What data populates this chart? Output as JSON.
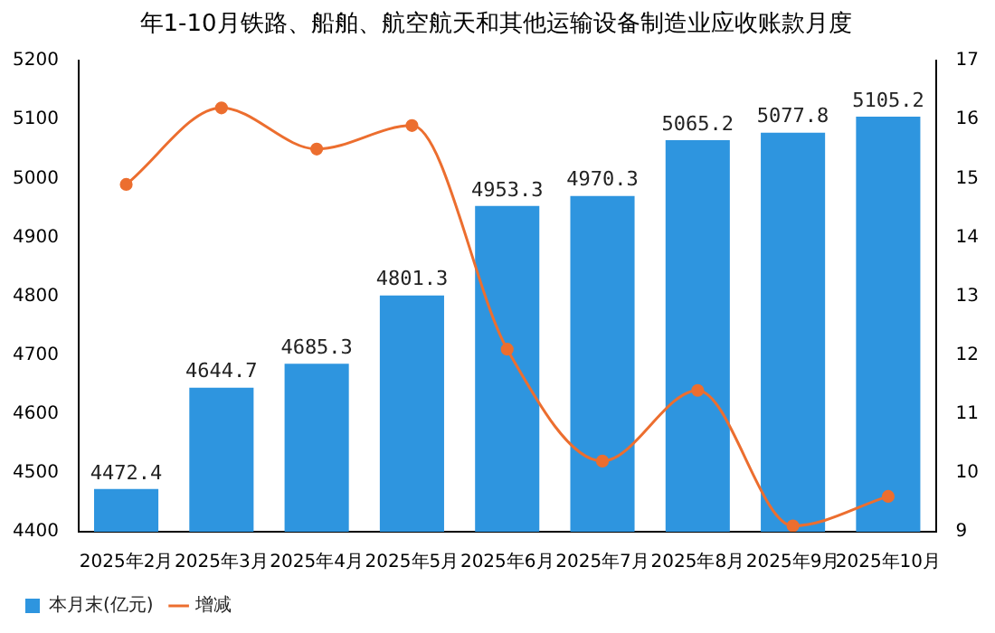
{
  "chart_data": {
    "type": "bar",
    "title": "年1-10月铁路、船舶、航空航天和其他运输设备制造业应收账款月度",
    "categories": [
      "2025年2月",
      "2025年3月",
      "2025年4月",
      "2025年5月",
      "2025年6月",
      "2025年7月",
      "2025年8月",
      "2025年9月",
      "2025年10月"
    ],
    "series": [
      {
        "name": "本月末(亿元)",
        "color": "#2e95df",
        "values": [
          4472.4,
          4644.7,
          4685.3,
          4801.3,
          4953.3,
          4970.3,
          5065.2,
          5077.8,
          5105.2
        ],
        "value_labels": [
          "4472.4",
          "4644.7",
          "4685.3",
          "4801.3",
          "4953.3",
          "4970.3",
          "5065.2",
          "5077.8",
          "5105.2"
        ]
      },
      {
        "name": "增减",
        "type": "line",
        "axis": "y2",
        "color": "#ec6e2f",
        "values": [
          14.9,
          16.2,
          15.5,
          15.9,
          12.1,
          10.2,
          11.4,
          9.1,
          9.6
        ]
      }
    ],
    "ylim": [
      4400,
      5200
    ],
    "yticks": [
      4400,
      4500,
      4600,
      4700,
      4800,
      4900,
      5000,
      5100,
      5200
    ],
    "y2lim": [
      9,
      17
    ],
    "y2ticks": [
      9,
      10,
      11,
      12,
      13,
      14,
      15,
      16,
      17
    ],
    "grid": false,
    "legend": "bottom left",
    "marker": "circle"
  }
}
